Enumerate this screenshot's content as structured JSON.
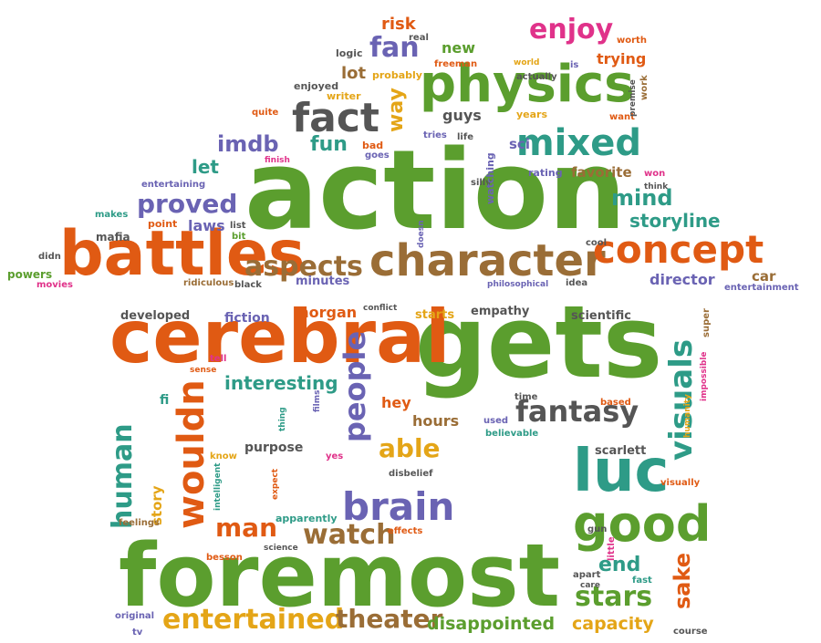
{
  "palette": {
    "green": "#5b9e2e",
    "orange": "#e05a13",
    "gray": "#555555",
    "purple": "#6a63b3",
    "teal": "#2e9b87",
    "brown": "#9a6d36",
    "yellow": "#e4a517",
    "pink": "#e0328a",
    "background": "#ffffff"
  },
  "words": [
    {
      "text": "action",
      "color": "green"
    },
    {
      "text": "gets",
      "color": "green"
    },
    {
      "text": "foremost",
      "color": "green"
    },
    {
      "text": "cerebral",
      "color": "orange"
    },
    {
      "text": "battles",
      "color": "orange"
    },
    {
      "text": "physics",
      "color": "green"
    },
    {
      "text": "character",
      "color": "brown"
    },
    {
      "text": "concept",
      "color": "orange"
    },
    {
      "text": "luc",
      "color": "teal"
    },
    {
      "text": "good",
      "color": "green"
    },
    {
      "text": "brain",
      "color": "purple"
    },
    {
      "text": "wouldn",
      "color": "orange"
    },
    {
      "text": "human",
      "color": "teal"
    },
    {
      "text": "fact",
      "color": "gray"
    },
    {
      "text": "mixed",
      "color": "teal"
    },
    {
      "text": "entertained",
      "color": "yellow"
    },
    {
      "text": "theater",
      "color": "brown"
    },
    {
      "text": "fantasy",
      "color": "gray"
    },
    {
      "text": "aspects",
      "color": "brown"
    },
    {
      "text": "visuals",
      "color": "teal"
    },
    {
      "text": "people",
      "color": "purple"
    },
    {
      "text": "watch",
      "color": "brown"
    },
    {
      "text": "stars",
      "color": "green"
    },
    {
      "text": "proved",
      "color": "purple"
    },
    {
      "text": "enjoy",
      "color": "pink"
    },
    {
      "text": "storyline",
      "color": "teal"
    },
    {
      "text": "sake",
      "color": "orange"
    },
    {
      "text": "mind",
      "color": "teal"
    },
    {
      "text": "fan",
      "color": "purple"
    },
    {
      "text": "way",
      "color": "yellow"
    },
    {
      "text": "imdb",
      "color": "purple"
    },
    {
      "text": "fun",
      "color": "teal"
    },
    {
      "text": "able",
      "color": "yellow"
    },
    {
      "text": "man",
      "color": "orange"
    },
    {
      "text": "interesting",
      "color": "teal"
    },
    {
      "text": "disappointed",
      "color": "green"
    },
    {
      "text": "capacity",
      "color": "yellow"
    },
    {
      "text": "director",
      "color": "purple"
    },
    {
      "text": "end",
      "color": "teal"
    },
    {
      "text": "hours",
      "color": "brown"
    },
    {
      "text": "trying",
      "color": "orange"
    },
    {
      "text": "favorite",
      "color": "brown"
    },
    {
      "text": "lot",
      "color": "brown"
    },
    {
      "text": "let",
      "color": "teal"
    },
    {
      "text": "laws",
      "color": "purple"
    },
    {
      "text": "guys",
      "color": "gray"
    },
    {
      "text": "new",
      "color": "green"
    },
    {
      "text": "risk",
      "color": "orange"
    },
    {
      "text": "morgan",
      "color": "orange"
    },
    {
      "text": "purpose",
      "color": "gray"
    },
    {
      "text": "scarlett",
      "color": "gray"
    },
    {
      "text": "fiction",
      "color": "purple"
    },
    {
      "text": "developed",
      "color": "gray"
    },
    {
      "text": "empathy",
      "color": "gray"
    },
    {
      "text": "scientific",
      "color": "gray"
    },
    {
      "text": "starts",
      "color": "yellow"
    },
    {
      "text": "hey",
      "color": "orange"
    },
    {
      "text": "story",
      "color": "yellow"
    },
    {
      "text": "car",
      "color": "brown"
    },
    {
      "text": "minutes",
      "color": "purple"
    },
    {
      "text": "sci",
      "color": "purple"
    },
    {
      "text": "fi",
      "color": "teal"
    },
    {
      "text": "mafia",
      "color": "gray"
    },
    {
      "text": "powers",
      "color": "green"
    },
    {
      "text": "movies",
      "color": "pink"
    },
    {
      "text": "didn",
      "color": "gray"
    },
    {
      "text": "makes",
      "color": "teal"
    },
    {
      "text": "point",
      "color": "orange"
    },
    {
      "text": "bit",
      "color": "green"
    },
    {
      "text": "list",
      "color": "gray"
    },
    {
      "text": "entertaining",
      "color": "purple"
    },
    {
      "text": "finish",
      "color": "pink"
    },
    {
      "text": "bad",
      "color": "orange"
    },
    {
      "text": "goes",
      "color": "purple"
    },
    {
      "text": "quite",
      "color": "orange"
    },
    {
      "text": "writer",
      "color": "yellow"
    },
    {
      "text": "enjoyed",
      "color": "gray"
    },
    {
      "text": "probably",
      "color": "yellow"
    },
    {
      "text": "logic",
      "color": "gray"
    },
    {
      "text": "real",
      "color": "gray"
    },
    {
      "text": "freeman",
      "color": "orange"
    },
    {
      "text": "actually",
      "color": "gray"
    },
    {
      "text": "world",
      "color": "yellow"
    },
    {
      "text": "worth",
      "color": "orange"
    },
    {
      "text": "is",
      "color": "purple"
    },
    {
      "text": "years",
      "color": "yellow"
    },
    {
      "text": "want",
      "color": "orange"
    },
    {
      "text": "work",
      "color": "brown"
    },
    {
      "text": "premise",
      "color": "gray"
    },
    {
      "text": "tries",
      "color": "purple"
    },
    {
      "text": "life",
      "color": "gray"
    },
    {
      "text": "silly",
      "color": "gray"
    },
    {
      "text": "rating",
      "color": "purple"
    },
    {
      "text": "won",
      "color": "pink"
    },
    {
      "text": "think",
      "color": "gray"
    },
    {
      "text": "watching",
      "color": "purple"
    },
    {
      "text": "doesn",
      "color": "purple"
    },
    {
      "text": "cool",
      "color": "gray"
    },
    {
      "text": "ridiculous",
      "color": "brown"
    },
    {
      "text": "black",
      "color": "gray"
    },
    {
      "text": "philosophical",
      "color": "purple"
    },
    {
      "text": "idea",
      "color": "gray"
    },
    {
      "text": "entertainment",
      "color": "purple"
    },
    {
      "text": "conflict",
      "color": "gray"
    },
    {
      "text": "super",
      "color": "brown"
    },
    {
      "text": "tell",
      "color": "pink"
    },
    {
      "text": "sense",
      "color": "orange"
    },
    {
      "text": "time",
      "color": "gray"
    },
    {
      "text": "based",
      "color": "orange"
    },
    {
      "text": "impossible",
      "color": "pink"
    },
    {
      "text": "used",
      "color": "purple"
    },
    {
      "text": "believable",
      "color": "teal"
    },
    {
      "text": "films",
      "color": "purple"
    },
    {
      "text": "thing",
      "color": "teal"
    },
    {
      "text": "know",
      "color": "yellow"
    },
    {
      "text": "yes",
      "color": "pink"
    },
    {
      "text": "humanity",
      "color": "yellow"
    },
    {
      "text": "intelligent",
      "color": "teal"
    },
    {
      "text": "expect",
      "color": "orange"
    },
    {
      "text": "disbelief",
      "color": "gray"
    },
    {
      "text": "visually",
      "color": "orange"
    },
    {
      "text": "gun",
      "color": "gray"
    },
    {
      "text": "feelings",
      "color": "brown"
    },
    {
      "text": "apparently",
      "color": "teal"
    },
    {
      "text": "effects",
      "color": "orange"
    },
    {
      "text": "science",
      "color": "gray"
    },
    {
      "text": "besson",
      "color": "orange"
    },
    {
      "text": "little",
      "color": "pink"
    },
    {
      "text": "apart",
      "color": "gray"
    },
    {
      "text": "care",
      "color": "gray"
    },
    {
      "text": "fast",
      "color": "teal"
    },
    {
      "text": "original",
      "color": "purple"
    },
    {
      "text": "tv",
      "color": "purple"
    },
    {
      "text": "course",
      "color": "gray"
    }
  ]
}
